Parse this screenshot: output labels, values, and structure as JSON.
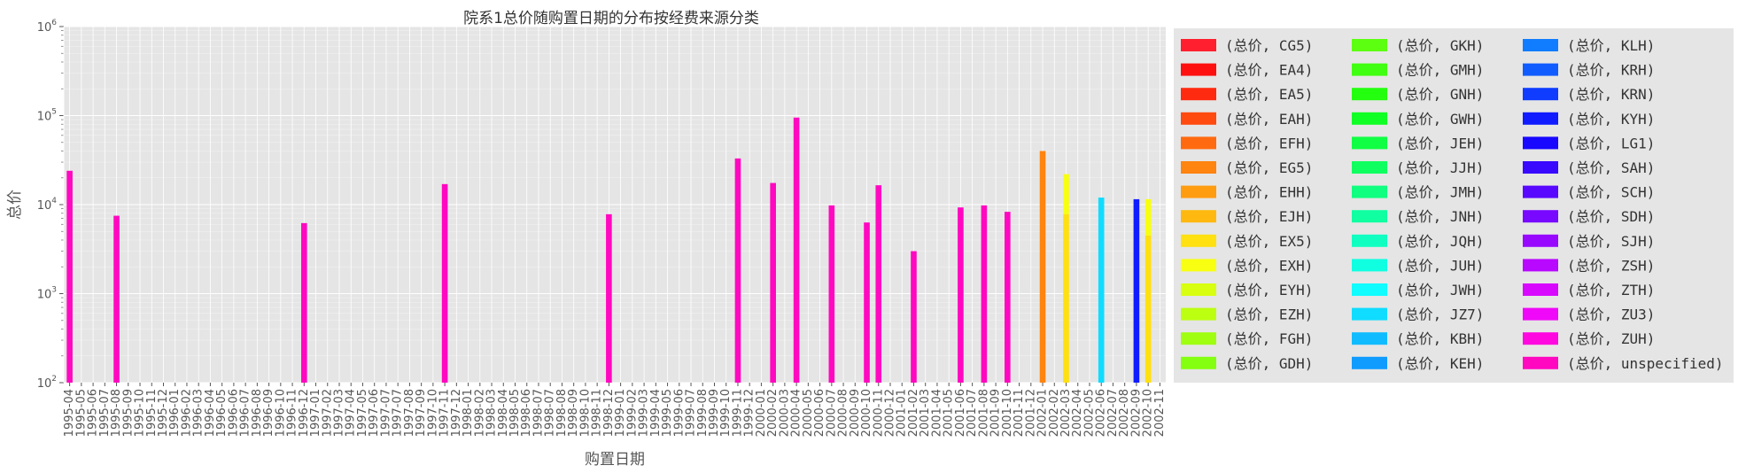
{
  "chart_data": {
    "type": "bar",
    "stacked": true,
    "title": "院系1总价随购置日期的分布按经费来源分类",
    "xlabel": "购置日期",
    "ylabel": "总价",
    "yscale": "log",
    "ylim": [
      100,
      1000000
    ],
    "y_ticks": [
      {
        "value": 100,
        "base": "10",
        "exp": "2"
      },
      {
        "value": 1000,
        "base": "10",
        "exp": "3"
      },
      {
        "value": 10000,
        "base": "10",
        "exp": "4"
      },
      {
        "value": 100000,
        "base": "10",
        "exp": "5"
      },
      {
        "value": 1000000,
        "base": "10",
        "exp": "6"
      }
    ],
    "grid": true,
    "legend_position": "outside-right",
    "background": "#e5e5e5",
    "categories": [
      "1995-04",
      "1995-05",
      "1995-06",
      "1995-07",
      "1995-08",
      "1995-09",
      "1995-10",
      "1995-11",
      "1995-12",
      "1996-01",
      "1996-02",
      "1996-03",
      "1996-04",
      "1996-05",
      "1996-06",
      "1996-07",
      "1996-08",
      "1996-09",
      "1996-10",
      "1996-11",
      "1996-12",
      "1997-01",
      "1997-02",
      "1997-03",
      "1997-04",
      "1997-05",
      "1997-06",
      "1997-07",
      "1997-07",
      "1997-08",
      "1997-09",
      "1997-10",
      "1997-11",
      "1997-12",
      "1998-01",
      "1998-02",
      "1998-03",
      "1998-04",
      "1998-05",
      "1998-06",
      "1998-07",
      "1998-07",
      "1998-08",
      "1998-09",
      "1998-10",
      "1998-11",
      "1998-12",
      "1999-01",
      "1999-02",
      "1999-03",
      "1999-04",
      "1999-05",
      "1999-06",
      "1999-07",
      "1999-08",
      "1999-09",
      "1999-10",
      "1999-11",
      "1999-12",
      "2000-01",
      "2000-02",
      "2000-03",
      "2000-04",
      "2000-05",
      "2000-06",
      "2000-07",
      "2000-08",
      "2000-09",
      "2000-10",
      "2000-11",
      "2000-12",
      "2001-01",
      "2001-02",
      "2001-03",
      "2001-04",
      "2001-05",
      "2001-06",
      "2001-07",
      "2001-08",
      "2001-09",
      "2001-10",
      "2001-11",
      "2001-12",
      "2002-01",
      "2002-02",
      "2002-03",
      "2002-04",
      "2002-05",
      "2002-06",
      "2002-07",
      "2002-08",
      "2002-09",
      "2002-10",
      "2002-11"
    ],
    "legend": [
      {
        "name": "(总价, CG5)",
        "color": "#ff1f2e"
      },
      {
        "name": "(总价, EA4)",
        "color": "#ff1010"
      },
      {
        "name": "(总价, EA5)",
        "color": "#ff2a10"
      },
      {
        "name": "(总价, EAH)",
        "color": "#ff4a10"
      },
      {
        "name": "(总价, EFH)",
        "color": "#ff6a10"
      },
      {
        "name": "(总价, EG5)",
        "color": "#ff8410"
      },
      {
        "name": "(总价, EHH)",
        "color": "#ff9c10"
      },
      {
        "name": "(总价, EJH)",
        "color": "#ffb810"
      },
      {
        "name": "(总价, EX5)",
        "color": "#ffe010"
      },
      {
        "name": "(总价, EXH)",
        "color": "#f8ff10"
      },
      {
        "name": "(总价, EYH)",
        "color": "#d8ff10"
      },
      {
        "name": "(总价, EZH)",
        "color": "#bcff10"
      },
      {
        "name": "(总价, FGH)",
        "color": "#a0ff10"
      },
      {
        "name": "(总价, GDH)",
        "color": "#84ff10"
      },
      {
        "name": "(总价, GKH)",
        "color": "#5cff10"
      },
      {
        "name": "(总价, GMH)",
        "color": "#40ff10"
      },
      {
        "name": "(总价, GNH)",
        "color": "#24ff10"
      },
      {
        "name": "(总价, GWH)",
        "color": "#10ff24"
      },
      {
        "name": "(总价, JEH)",
        "color": "#10ff44"
      },
      {
        "name": "(总价, JJH)",
        "color": "#10ff60"
      },
      {
        "name": "(总价, JMH)",
        "color": "#10ff80"
      },
      {
        "name": "(总价, JNH)",
        "color": "#10ffa0"
      },
      {
        "name": "(总价, JQH)",
        "color": "#10ffc0"
      },
      {
        "name": "(总价, JUH)",
        "color": "#10ffe0"
      },
      {
        "name": "(总价, JWH)",
        "color": "#10fcff"
      },
      {
        "name": "(总价, JZ7)",
        "color": "#10dcff"
      },
      {
        "name": "(总价, KBH)",
        "color": "#10bcff"
      },
      {
        "name": "(总价, KEH)",
        "color": "#109cff"
      },
      {
        "name": "(总价, KLH)",
        "color": "#107cff"
      },
      {
        "name": "(总价, KRH)",
        "color": "#105cff"
      },
      {
        "name": "(总价, KRN)",
        "color": "#103cff"
      },
      {
        "name": "(总价, KYH)",
        "color": "#101cff"
      },
      {
        "name": "(总价, LG1)",
        "color": "#1808ff"
      },
      {
        "name": "(总价, SAH)",
        "color": "#3808ff"
      },
      {
        "name": "(总价, SCH)",
        "color": "#5808ff"
      },
      {
        "name": "(总价, SDH)",
        "color": "#7808ff"
      },
      {
        "name": "(总价, SJH)",
        "color": "#9808ff"
      },
      {
        "name": "(总价, ZSH)",
        "color": "#b808ff"
      },
      {
        "name": "(总价, ZTH)",
        "color": "#d808ff"
      },
      {
        "name": "(总价, ZU3)",
        "color": "#f008f8"
      },
      {
        "name": "(总价, ZUH)",
        "color": "#ff08e0"
      },
      {
        "name": "(总价, unspecified)",
        "color": "#ff08c0"
      }
    ],
    "bars": [
      {
        "index": 0,
        "segments": [
          {
            "series": "(总价, unspecified)",
            "value": 24000
          }
        ]
      },
      {
        "index": 4,
        "segments": [
          {
            "series": "(总价, unspecified)",
            "value": 7500
          }
        ]
      },
      {
        "index": 20,
        "segments": [
          {
            "series": "(总价, unspecified)",
            "value": 6200
          }
        ]
      },
      {
        "index": 32,
        "segments": [
          {
            "series": "(总价, unspecified)",
            "value": 17000
          }
        ]
      },
      {
        "index": 46,
        "segments": [
          {
            "series": "(总价, unspecified)",
            "value": 7800
          }
        ]
      },
      {
        "index": 57,
        "segments": [
          {
            "series": "(总价, unspecified)",
            "value": 33000
          }
        ]
      },
      {
        "index": 60,
        "segments": [
          {
            "series": "(总价, unspecified)",
            "value": 17500
          }
        ]
      },
      {
        "index": 62,
        "segments": [
          {
            "series": "(总价, unspecified)",
            "value": 95000
          }
        ]
      },
      {
        "index": 65,
        "segments": [
          {
            "series": "(总价, unspecified)",
            "value": 9800
          }
        ]
      },
      {
        "index": 68,
        "segments": [
          {
            "series": "(总价, unspecified)",
            "value": 6300
          }
        ]
      },
      {
        "index": 69,
        "segments": [
          {
            "series": "(总价, unspecified)",
            "value": 16500
          }
        ]
      },
      {
        "index": 72,
        "segments": [
          {
            "series": "(总价, unspecified)",
            "value": 3000
          }
        ]
      },
      {
        "index": 76,
        "segments": [
          {
            "series": "(总价, unspecified)",
            "value": 9300
          }
        ]
      },
      {
        "index": 78,
        "segments": [
          {
            "series": "(总价, unspecified)",
            "value": 9800
          }
        ]
      },
      {
        "index": 80,
        "segments": [
          {
            "series": "(总价, unspecified)",
            "value": 8300
          }
        ]
      },
      {
        "index": 83,
        "segments": [
          {
            "series": "(总价, EG5)",
            "value": 40000
          }
        ]
      },
      {
        "index": 85,
        "segments": [
          {
            "series": "(总价, EX5)",
            "value": 7800
          },
          {
            "series": "(总价, EXH)",
            "value": 14200
          }
        ]
      },
      {
        "index": 88,
        "segments": [
          {
            "series": "(总价, JZ7)",
            "value": 12000
          }
        ]
      },
      {
        "index": 91,
        "segments": [
          {
            "series": "(总价, KYH)",
            "value": 11500
          }
        ]
      },
      {
        "index": 92,
        "segments": [
          {
            "series": "(总价, EX5)",
            "value": 4500
          },
          {
            "series": "(总价, EXH)",
            "value": 7000
          }
        ]
      }
    ]
  }
}
